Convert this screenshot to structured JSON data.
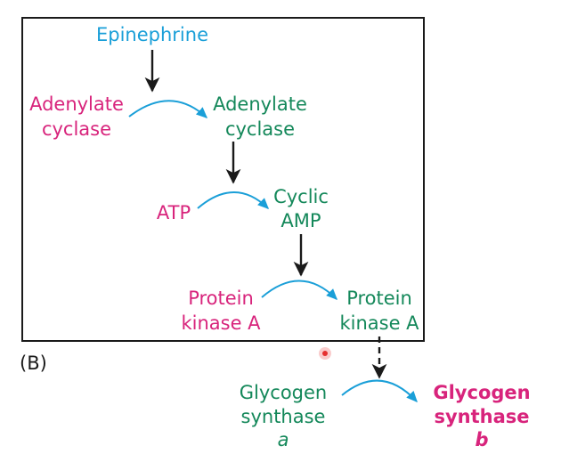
{
  "colors": {
    "blue": "#1a9fd8",
    "magenta": "#d8247c",
    "green": "#14885a",
    "black": "#1a1a1a",
    "cursor": "#e53030"
  },
  "panel_label": "(B)",
  "nodes": {
    "epinephrine": "Epinephrine",
    "adenylate_cyclase_inactive": {
      "line1": "Adenylate",
      "line2": "cyclase"
    },
    "adenylate_cyclase_active": {
      "line1": "Adenylate",
      "line2": "cyclase"
    },
    "atp": "ATP",
    "cyclic_amp": {
      "line1": "Cyclic",
      "line2": "AMP"
    },
    "protein_kinase_a_inactive": {
      "line1": "Protein",
      "line2": "kinase A"
    },
    "protein_kinase_a_active": {
      "line1": "Protein",
      "line2": "kinase A"
    },
    "glycogen_synthase_a": {
      "line1": "Glycogen",
      "line2": "synthase",
      "form": "a"
    },
    "glycogen_synthase_b": {
      "line1": "Glycogen",
      "line2": "synthase",
      "form": "b"
    }
  }
}
